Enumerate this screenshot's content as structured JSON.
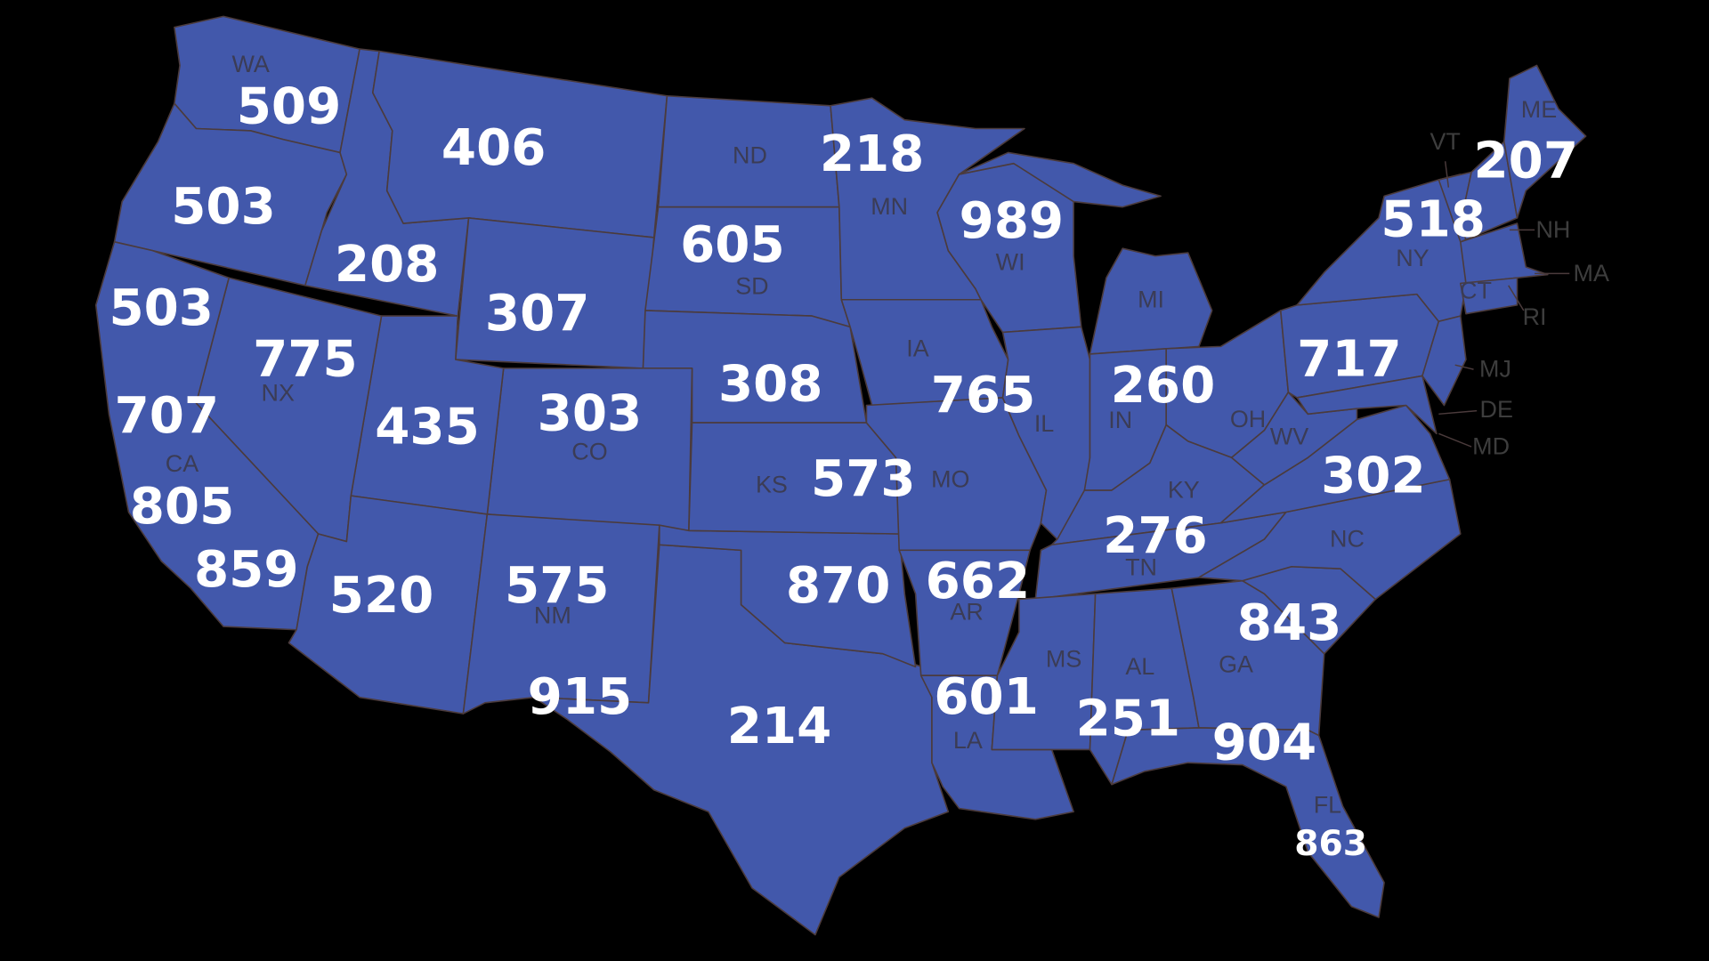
{
  "map": {
    "colors": {
      "background": "#000000",
      "state_fill": "#4258ab",
      "border": "#4b3b3c",
      "code_text": "#ffffff",
      "abbr_text": "#3b3c55"
    },
    "area_codes": [
      {
        "state": "WA",
        "code": "509"
      },
      {
        "state": "MT",
        "code": "406"
      },
      {
        "state": "OR",
        "code": "503"
      },
      {
        "state": "ID",
        "code": "208"
      },
      {
        "state": "CA-north",
        "code": "503"
      },
      {
        "state": "WY",
        "code": "307"
      },
      {
        "state": "NV",
        "code": "775"
      },
      {
        "state": "CA",
        "code": "707"
      },
      {
        "state": "UT",
        "code": "435"
      },
      {
        "state": "CO",
        "code": "303"
      },
      {
        "state": "CA",
        "code": "805"
      },
      {
        "state": "CA",
        "code": "859"
      },
      {
        "state": "AZ",
        "code": "520"
      },
      {
        "state": "NM",
        "code": "575"
      },
      {
        "state": "TX-west",
        "code": "915"
      },
      {
        "state": "MN",
        "code": "218"
      },
      {
        "state": "SD",
        "code": "605"
      },
      {
        "state": "NE",
        "code": "308"
      },
      {
        "state": "WI",
        "code": "989"
      },
      {
        "state": "IA/IL",
        "code": "765"
      },
      {
        "state": "MO",
        "code": "573"
      },
      {
        "state": "IN/OH",
        "code": "260"
      },
      {
        "state": "PA",
        "code": "717"
      },
      {
        "state": "VA",
        "code": "302"
      },
      {
        "state": "KY/TN",
        "code": "276"
      },
      {
        "state": "OK",
        "code": "870"
      },
      {
        "state": "AR",
        "code": "662"
      },
      {
        "state": "SC",
        "code": "843"
      },
      {
        "state": "MS",
        "code": "601"
      },
      {
        "state": "AL",
        "code": "251"
      },
      {
        "state": "TX",
        "code": "214"
      },
      {
        "state": "GA/FL",
        "code": "904"
      },
      {
        "state": "FL",
        "code": "863"
      },
      {
        "state": "NY",
        "code": "518"
      },
      {
        "state": "ME",
        "code": "207"
      }
    ],
    "state_labels": [
      "WA",
      "ND",
      "MN",
      "SD",
      "WI",
      "MI",
      "IA",
      "NX",
      "CA",
      "CO",
      "IL",
      "IN",
      "OH",
      "KS",
      "MO",
      "KY",
      "WV",
      "NC",
      "TN",
      "AR",
      "NM",
      "AL",
      "GA",
      "MS",
      "LA",
      "FL",
      "NY",
      "CT",
      "VT",
      "ME",
      "NH",
      "MA",
      "RI",
      "MJ",
      "DE",
      "MD"
    ]
  }
}
